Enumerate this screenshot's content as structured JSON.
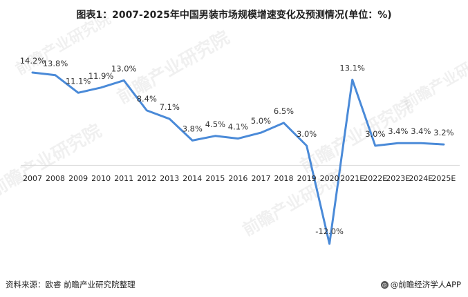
{
  "title": "图表1：2007-2025年中国男装市场规模增速变化及预测情况(单位：%)",
  "source": "资料来源：欧睿 前瞻产业研究院整理",
  "brand": "@前瞻经济学人APP",
  "watermark": "前瞻产业研究院",
  "chart_data": {
    "type": "line",
    "title": "图表1：2007-2025年中国男装市场规模增速变化及预测情况(单位：%)",
    "categories": [
      "2007",
      "2008",
      "2009",
      "2010",
      "2011",
      "2012",
      "2013",
      "2014",
      "2015",
      "2016",
      "2017",
      "2018",
      "2019",
      "2020",
      "2021E",
      "2022E",
      "2023E",
      "2024E",
      "2025E"
    ],
    "series": [
      {
        "values": [
          14.2,
          13.8,
          11.1,
          11.9,
          13.0,
          8.4,
          7.1,
          3.8,
          4.5,
          4.1,
          5.0,
          6.5,
          3.0,
          -12.0,
          13.1,
          3.0,
          3.4,
          3.4,
          3.2
        ],
        "labels": [
          "14.2%",
          "13.8%",
          "11.1%",
          "11.9%",
          "13.0%",
          "8.4%",
          "7.1%",
          "3.8%",
          "4.5%",
          "4.1%",
          "5.0%",
          "6.5%",
          "3.0%",
          "-12.0%",
          "13.1%",
          "3.0%",
          "3.4%",
          "3.4%",
          "3.2%"
        ]
      }
    ],
    "line_color": "#4a8ad8",
    "xlabel": "",
    "ylabel": "",
    "ylim": [
      -12.0,
      14.2
    ],
    "grid": false,
    "legend": "none"
  }
}
